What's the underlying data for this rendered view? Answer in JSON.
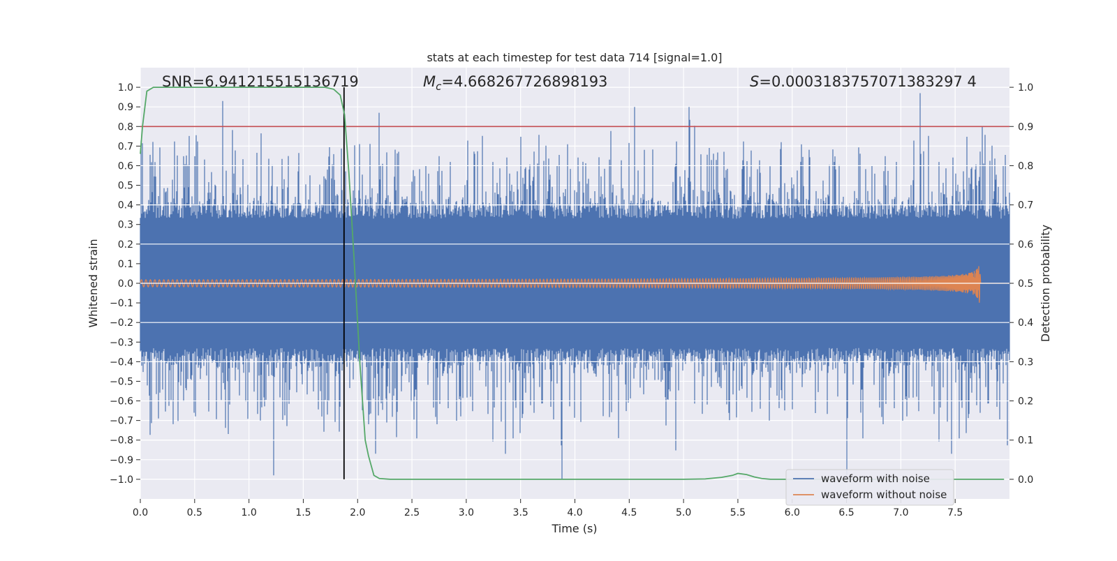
{
  "chart_data": {
    "type": "line",
    "title": "stats at each timestep for test data 714 [signal=1.0]",
    "xlabel": "Time (s)",
    "ylabel_left": "Whitened strain",
    "ylabel_right": "Detection probability",
    "xlim": [
      0.0,
      8.0
    ],
    "ylim_left": [
      -1.1,
      1.1
    ],
    "ylim_right": [
      -0.05,
      1.05
    ],
    "x_ticks": [
      "0.0",
      "0.5",
      "1.0",
      "1.5",
      "2.0",
      "2.5",
      "3.0",
      "3.5",
      "4.0",
      "4.5",
      "5.0",
      "5.5",
      "6.0",
      "6.5",
      "7.0",
      "7.5"
    ],
    "y_ticks_left": [
      "1.0",
      "0.9",
      "0.8",
      "0.7",
      "0.6",
      "0.5",
      "0.4",
      "0.3",
      "0.2",
      "0.1",
      "0.0",
      "−0.1",
      "−0.2",
      "−0.3",
      "−0.4",
      "−0.5",
      "−0.6",
      "−0.7",
      "−0.8",
      "−0.9",
      "−1.0"
    ],
    "y_ticks_right": [
      "1.0",
      "0.9",
      "0.8",
      "0.7",
      "0.6",
      "0.5",
      "0.4",
      "0.3",
      "0.2",
      "0.1",
      "0.0"
    ],
    "annotations": {
      "snr": "SNR=6.941215515136719",
      "mc_symbol": "M",
      "mc_sub": "c",
      "mc_value": "=4.668267726898193",
      "s_symbol": "S",
      "s_value": "=0.0003183757071383297 4"
    },
    "threshold_line": {
      "y": 0.9,
      "axis": "right",
      "color": "#c44e52"
    },
    "marker_line": {
      "x": 1.875,
      "color": "#000000"
    },
    "series": [
      {
        "name": "waveform with noise",
        "axis": "left",
        "color": "#4c72b0",
        "description_ranges": "noisy whitened strain, band roughly ±0.4 with spikes up to ±1.0",
        "peaks_x": [
          0.76,
          1.23,
          2.2,
          3.88,
          4.55,
          5.05,
          6.5,
          7.18,
          7.75
        ],
        "peaks_y": [
          0.93,
          -0.98,
          0.87,
          -1.0,
          0.9,
          0.9,
          -0.98,
          0.97,
          0.8
        ]
      },
      {
        "name": "waveform without noise",
        "axis": "left",
        "color": "#dd8452",
        "chirp_start_amp": 0.018,
        "chirp_end_x": 7.73,
        "chirp_peak_amp": 0.18
      },
      {
        "name": "detection probability",
        "axis": "right",
        "color": "#55a868",
        "x": [
          0.0,
          0.02,
          0.06,
          0.12,
          0.2,
          0.5,
          1.0,
          1.5,
          1.7,
          1.78,
          1.84,
          1.88,
          1.92,
          1.97,
          2.02,
          2.07,
          2.1,
          2.15,
          2.2,
          2.3,
          2.5,
          3.0,
          4.0,
          5.0,
          5.2,
          5.35,
          5.45,
          5.5,
          5.58,
          5.65,
          5.72,
          5.8,
          6.0,
          7.0,
          7.95
        ],
        "y": [
          0.83,
          0.9,
          0.99,
          1.0,
          1.0,
          1.0,
          1.0,
          1.0,
          1.0,
          0.995,
          0.98,
          0.93,
          0.78,
          0.55,
          0.3,
          0.1,
          0.06,
          0.01,
          0.002,
          0.0,
          0.0,
          0.0,
          0.0,
          0.0,
          0.001,
          0.005,
          0.01,
          0.015,
          0.012,
          0.006,
          0.002,
          0.0,
          0.0,
          0.0,
          0.0
        ]
      }
    ],
    "legend": {
      "placement": "lower-right",
      "entries": [
        {
          "label": "waveform with noise",
          "color": "#4c72b0"
        },
        {
          "label": "waveform without noise",
          "color": "#dd8452"
        }
      ]
    }
  }
}
